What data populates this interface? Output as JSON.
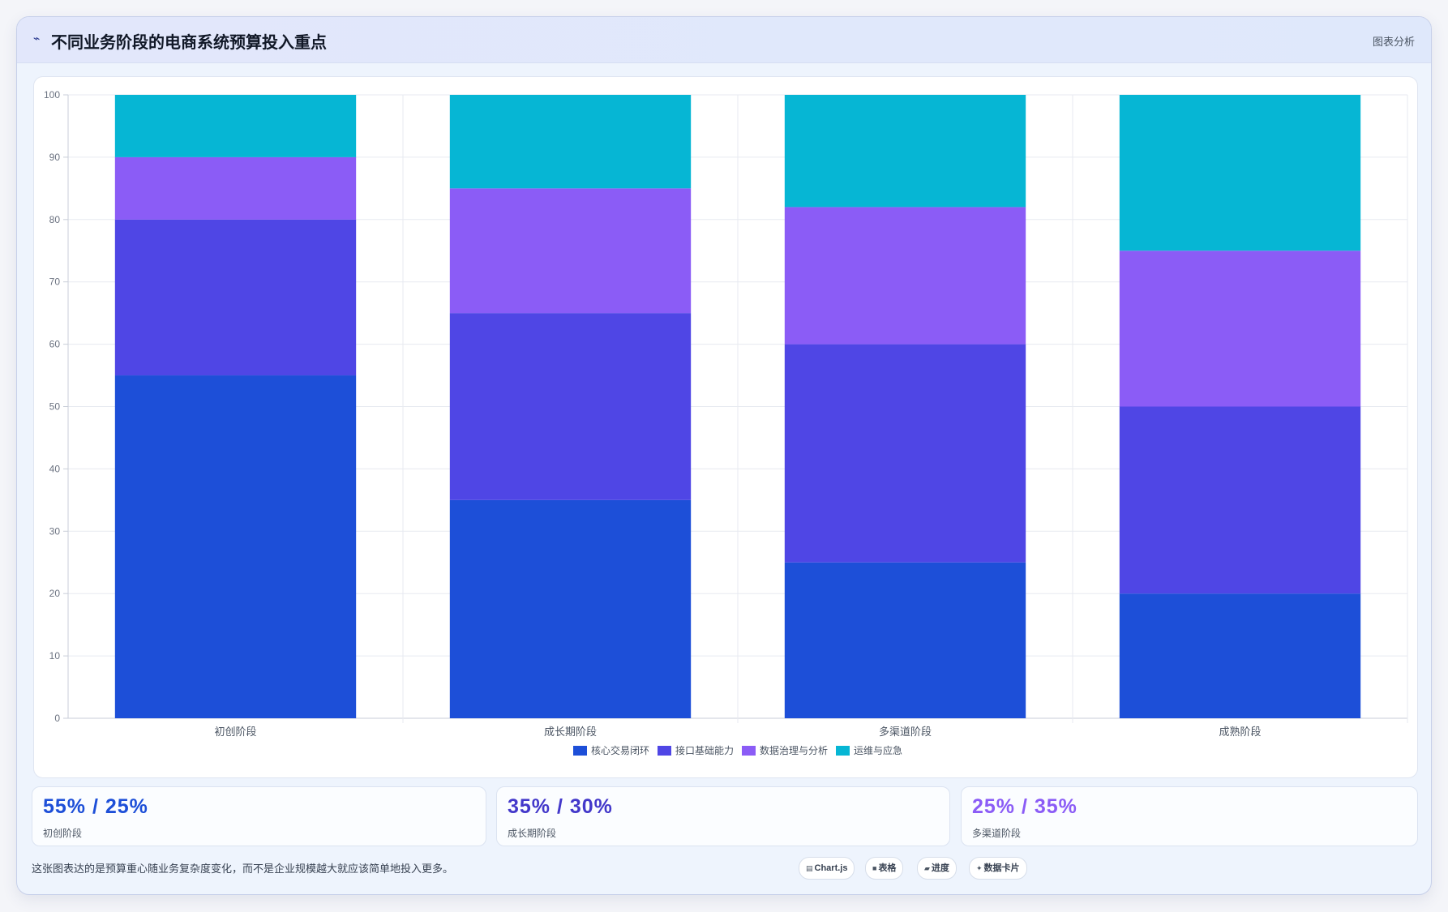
{
  "header": {
    "title": "不同业务阶段的电商系统预算投入重点",
    "right_label": "图表分析"
  },
  "chart_data": {
    "type": "bar",
    "stacked": true,
    "categories": [
      "初创阶段",
      "成长期阶段",
      "多渠道阶段",
      "成熟阶段"
    ],
    "series": [
      {
        "name": "核心交易闭环",
        "color": "#1d4fd8",
        "values": [
          55,
          35,
          25,
          20
        ]
      },
      {
        "name": "接口基础能力",
        "color": "#4f46e5",
        "values": [
          25,
          30,
          35,
          30
        ]
      },
      {
        "name": "数据治理与分析",
        "color": "#8b5cf6",
        "values": [
          10,
          20,
          22,
          25
        ]
      },
      {
        "name": "运维与应急",
        "color": "#06b6d4",
        "values": [
          10,
          15,
          18,
          25
        ]
      }
    ],
    "ylim": [
      0,
      100
    ],
    "yticks": [
      0,
      10,
      20,
      30,
      40,
      50,
      60,
      70,
      80,
      90,
      100
    ],
    "grid": true,
    "legend_position": "bottom"
  },
  "stats": [
    {
      "value": "55% / 25%",
      "label": "初创阶段",
      "color": "#1d4fd8"
    },
    {
      "value": "35% / 30%",
      "label": "成长期阶段",
      "color": "#4338ca"
    },
    {
      "value": "25% / 35%",
      "label": "多渠道阶段",
      "color": "#8b5cf6"
    }
  ],
  "footnote": "这张图表达的是预算重心随业务复杂度变化，而不是企业规模越大就应该简单地投入更多。",
  "tags": [
    {
      "icon": "chart-icon",
      "glyph": "▤",
      "label": "Chart.js"
    },
    {
      "icon": "table-icon",
      "glyph": "■",
      "label": "表格"
    },
    {
      "icon": "progress-icon",
      "glyph": "▰",
      "label": "进度"
    },
    {
      "icon": "datacard-icon",
      "glyph": "✦",
      "label": "数据卡片"
    }
  ]
}
